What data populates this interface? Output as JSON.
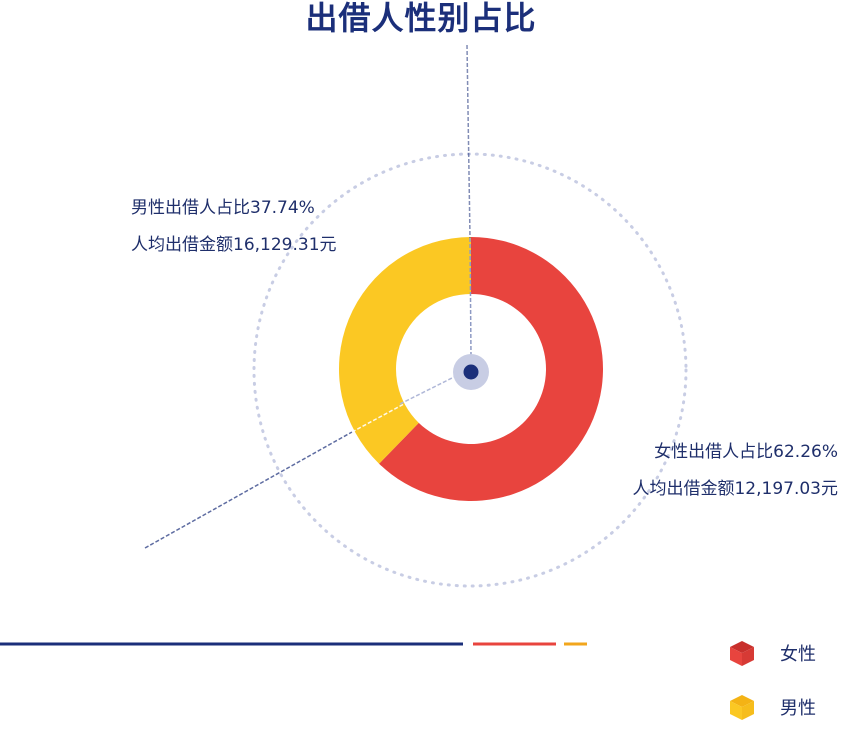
{
  "chart_data": {
    "type": "pie",
    "variant": "donut",
    "title": "出借人性别占比",
    "categories": [
      "女性",
      "男性"
    ],
    "values": [
      62.26,
      37.74
    ],
    "unit": "%",
    "colors": {
      "女性": "#e8443e",
      "男性": "#fbc823"
    },
    "annotations": {
      "female_ratio": "女性出借人占比62.26%",
      "female_avg": "人均出借金额12,197.03元",
      "male_ratio": "男性出借人占比37.74%",
      "male_avg": "人均出借金额16,129.31元"
    },
    "legend": [
      {
        "label": "女性",
        "color": "#e8443e"
      },
      {
        "label": "男性",
        "color": "#fbc823"
      }
    ],
    "accent_colors": {
      "navy": "#1b2f7a",
      "dots": "#c8cde4"
    }
  }
}
